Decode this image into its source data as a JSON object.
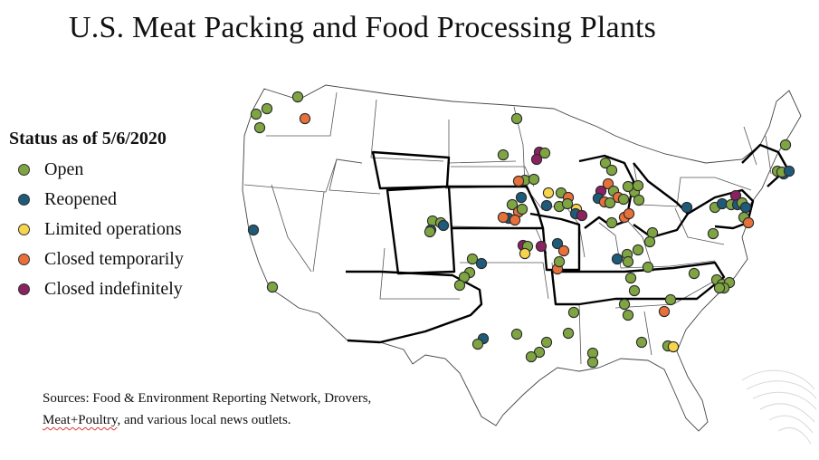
{
  "title": "U.S. Meat Packing and Food Processing Plants",
  "legend": {
    "title": "Status as of 5/6/2020",
    "items": [
      {
        "key": "open",
        "label": "Open",
        "color": "#7fa542"
      },
      {
        "key": "reopened",
        "label": "Reopened",
        "color": "#1f5a78"
      },
      {
        "key": "limited",
        "label": "Limited operations",
        "color": "#f7d54a"
      },
      {
        "key": "closed_temp",
        "label": "Closed temporarily",
        "color": "#e8703b"
      },
      {
        "key": "closed_indef",
        "label": "Closed indefinitely",
        "color": "#8a2160"
      }
    ]
  },
  "sources": {
    "line1": "Sources: Food & Environment Reporting Network, Drovers,",
    "line2_part1": "Meat+Poultry",
    "line2_part2": ", and various local news outlets."
  }
}
